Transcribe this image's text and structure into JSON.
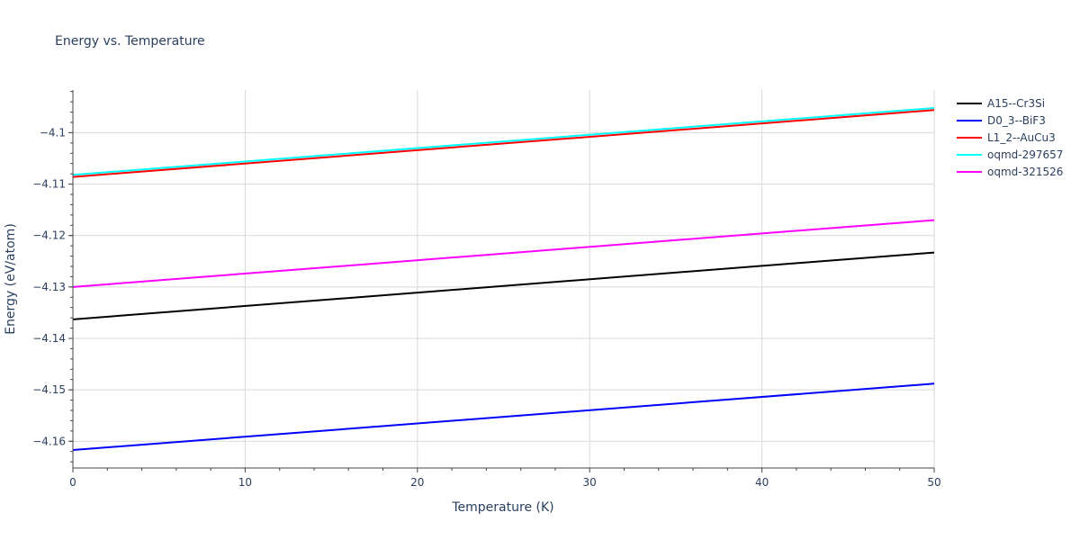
{
  "chart_data": {
    "type": "line",
    "title": "Energy vs. Temperature",
    "xlabel": "Temperature (K)",
    "ylabel": "Energy (eV/atom)",
    "xlim": [
      0,
      50
    ],
    "ylim": [
      -4.1652,
      -4.0917
    ],
    "x_ticks": [
      0,
      10,
      20,
      30,
      40,
      50
    ],
    "x_tick_labels": [
      "0",
      "10",
      "20",
      "30",
      "40",
      "50"
    ],
    "y_ticks": [
      -4.16,
      -4.15,
      -4.14,
      -4.13,
      -4.12,
      -4.11,
      -4.1
    ],
    "y_tick_labels": [
      "−4.16",
      "−4.15",
      "−4.14",
      "−4.13",
      "−4.12",
      "−4.11",
      "−4.1"
    ],
    "grid": true,
    "legend_position": "right",
    "series": [
      {
        "name": "A15--Cr3Si",
        "color": "#000000",
        "x": [
          0,
          50
        ],
        "y": [
          -4.1363,
          -4.1233
        ]
      },
      {
        "name": "D0_3--BiF3",
        "color": "#0000ff",
        "x": [
          0,
          50
        ],
        "y": [
          -4.1617,
          -4.1488
        ]
      },
      {
        "name": "L1_2--AuCu3",
        "color": "#ff0000",
        "x": [
          0,
          50
        ],
        "y": [
          -4.1086,
          -4.0956
        ]
      },
      {
        "name": "oqmd-297657",
        "color": "#00ffff",
        "x": [
          0,
          50
        ],
        "y": [
          -4.1082,
          -4.0952
        ]
      },
      {
        "name": "oqmd-321526",
        "color": "#ff00ff",
        "x": [
          0,
          50
        ],
        "y": [
          -4.13,
          -4.117
        ]
      }
    ]
  }
}
